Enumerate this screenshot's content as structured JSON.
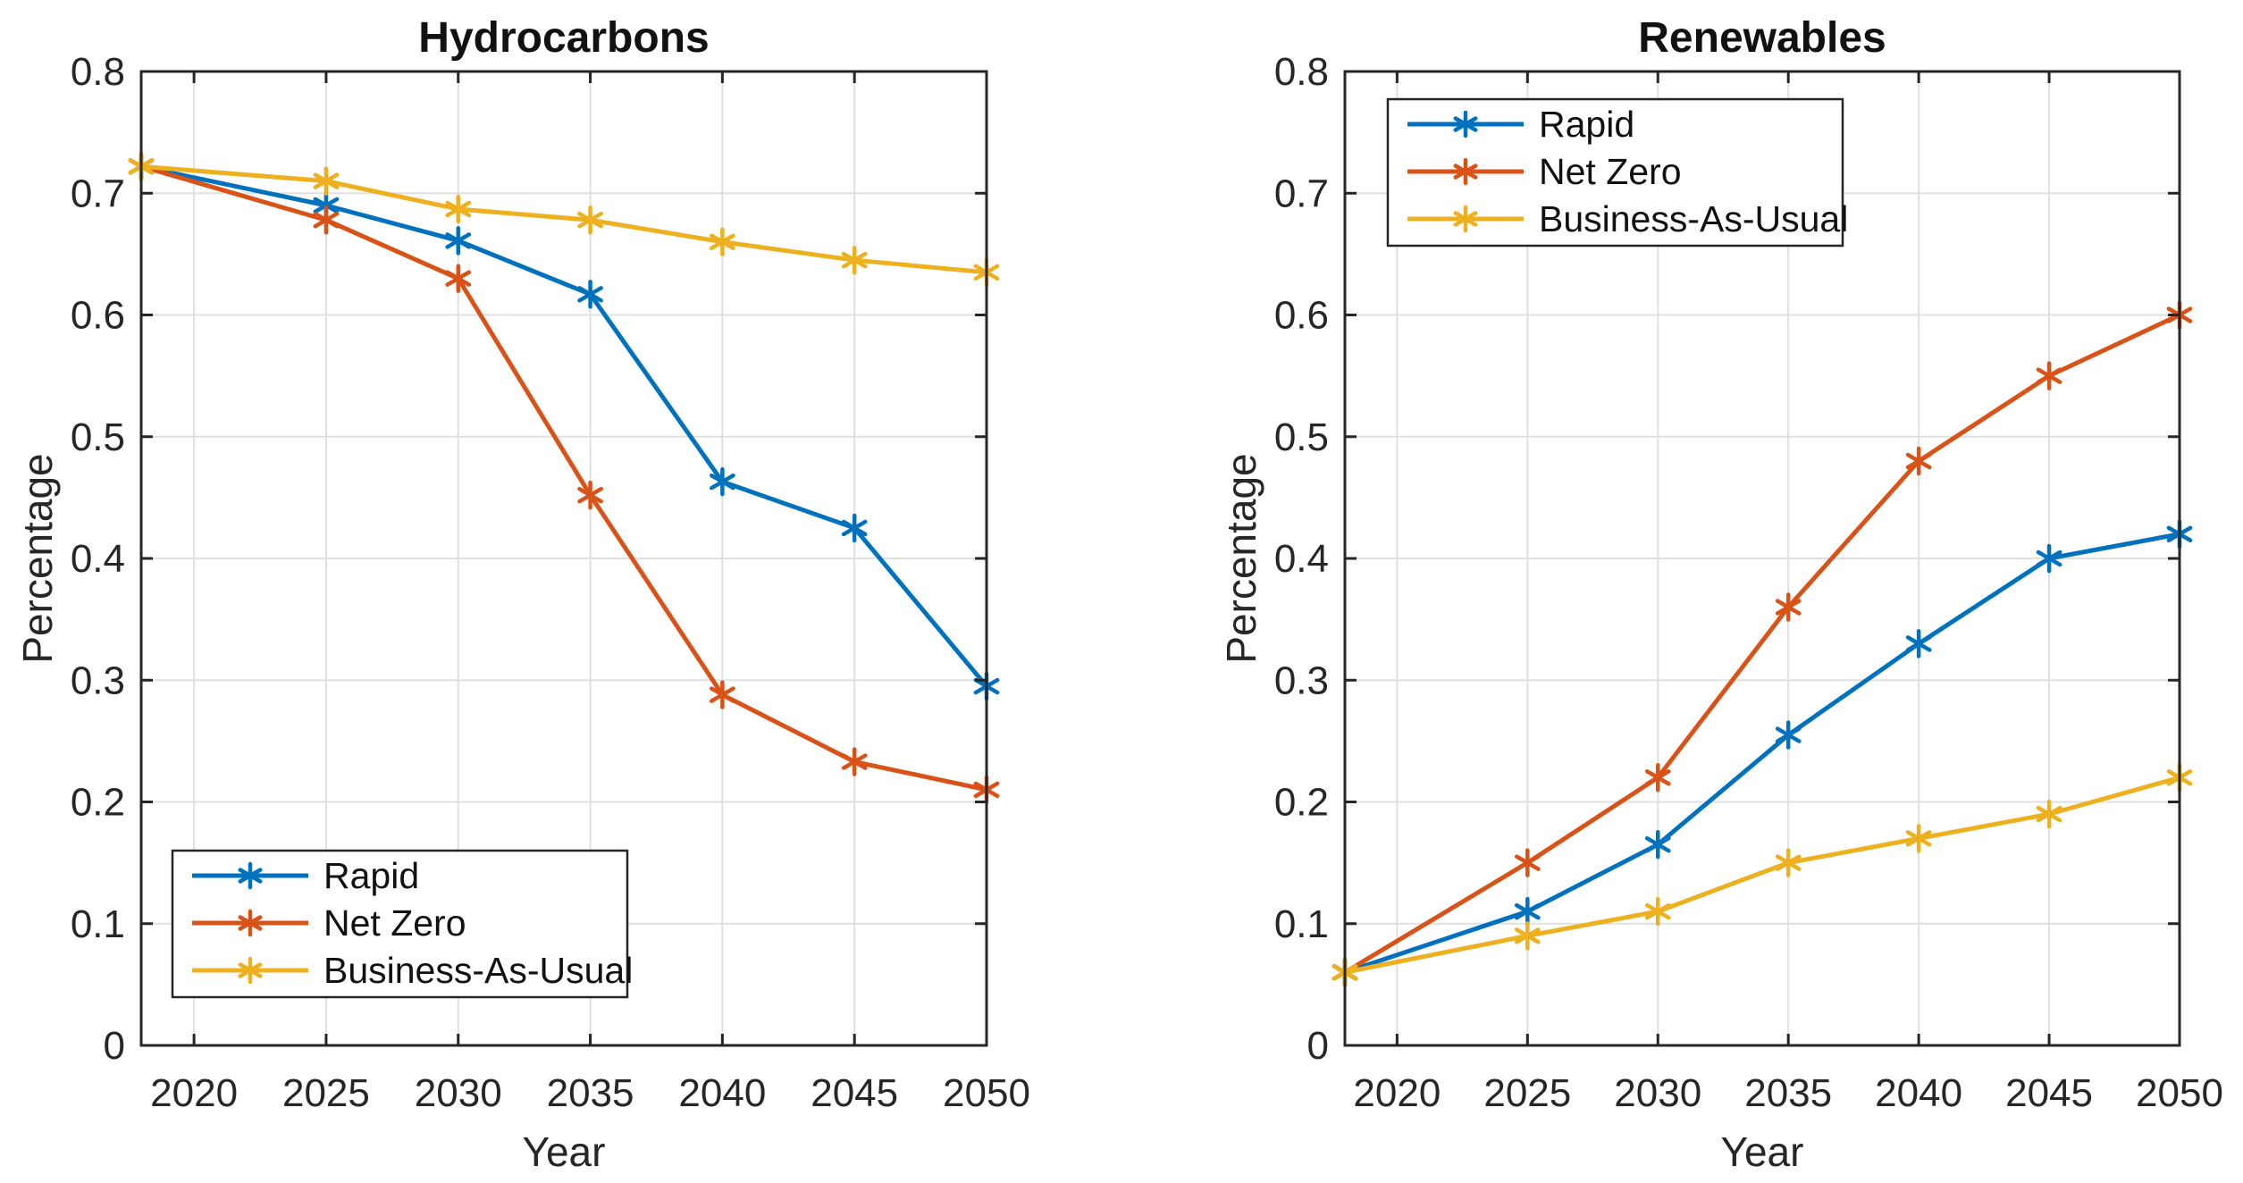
{
  "figure": {
    "background": "#FFFFFF"
  },
  "colors": {
    "rapid": "#0072BD",
    "net_zero": "#D95319",
    "bau": "#EDB120",
    "axis": "#262626",
    "grid": "#E0E0E0",
    "text": "#262626",
    "legend_background": "#FFFFFF",
    "legend_border": "#262626"
  },
  "chart_data": [
    {
      "type": "line",
      "title": "Hydrocarbons",
      "xlabel": "Year",
      "ylabel": "Percentage",
      "marker": "asterisk",
      "grid": true,
      "x": [
        2018,
        2025,
        2030,
        2035,
        2040,
        2045,
        2050
      ],
      "series": [
        {
          "name": "Rapid",
          "color_key": "rapid",
          "values": [
            0.722,
            0.69,
            0.661,
            0.617,
            0.463,
            0.425,
            0.295
          ]
        },
        {
          "name": "Net Zero",
          "color_key": "net_zero",
          "values": [
            0.722,
            0.678,
            0.63,
            0.452,
            0.288,
            0.233,
            0.21
          ]
        },
        {
          "name": "Business-As-Usual",
          "color_key": "bau",
          "values": [
            0.722,
            0.71,
            0.687,
            0.678,
            0.66,
            0.645,
            0.635
          ]
        }
      ],
      "xlim": [
        2018,
        2050
      ],
      "ylim": [
        0,
        0.8
      ],
      "xticks": [
        2020,
        2025,
        2030,
        2035,
        2040,
        2045,
        2050
      ],
      "xtick_labels": [
        "2020",
        "2025",
        "2030",
        "2035",
        "2040",
        "2045",
        "2050"
      ],
      "yticks": [
        0,
        0.1,
        0.2,
        0.3,
        0.4,
        0.5,
        0.6,
        0.7,
        0.8
      ],
      "ytick_labels": [
        "0",
        "0.1",
        "0.2",
        "0.3",
        "0.4",
        "0.5",
        "0.6",
        "0.7",
        "0.8"
      ],
      "legend": {
        "position": "southwest",
        "entries": [
          "Rapid",
          "Net Zero",
          "Business-As-Usual"
        ]
      }
    },
    {
      "type": "line",
      "title": "Renewables",
      "xlabel": "Year",
      "ylabel": "Percentage",
      "marker": "asterisk",
      "grid": true,
      "x": [
        2018,
        2025,
        2030,
        2035,
        2040,
        2045,
        2050
      ],
      "series": [
        {
          "name": "Rapid",
          "color_key": "rapid",
          "values": [
            0.06,
            0.11,
            0.165,
            0.255,
            0.33,
            0.4,
            0.42
          ]
        },
        {
          "name": "Net Zero",
          "color_key": "net_zero",
          "values": [
            0.06,
            0.15,
            0.22,
            0.36,
            0.48,
            0.55,
            0.6
          ]
        },
        {
          "name": "Business-As-Usual",
          "color_key": "bau",
          "values": [
            0.06,
            0.09,
            0.11,
            0.15,
            0.17,
            0.19,
            0.22
          ]
        }
      ],
      "xlim": [
        2018,
        2050
      ],
      "ylim": [
        0,
        0.8
      ],
      "xticks": [
        2020,
        2025,
        2030,
        2035,
        2040,
        2045,
        2050
      ],
      "xtick_labels": [
        "2020",
        "2025",
        "2030",
        "2035",
        "2040",
        "2045",
        "2050"
      ],
      "yticks": [
        0,
        0.1,
        0.2,
        0.3,
        0.4,
        0.5,
        0.6,
        0.7,
        0.8
      ],
      "ytick_labels": [
        "0",
        "0.1",
        "0.2",
        "0.3",
        "0.4",
        "0.5",
        "0.6",
        "0.7",
        "0.8"
      ],
      "legend": {
        "position": "northwest",
        "entries": [
          "Rapid",
          "Net Zero",
          "Business-As-Usual"
        ]
      }
    }
  ]
}
